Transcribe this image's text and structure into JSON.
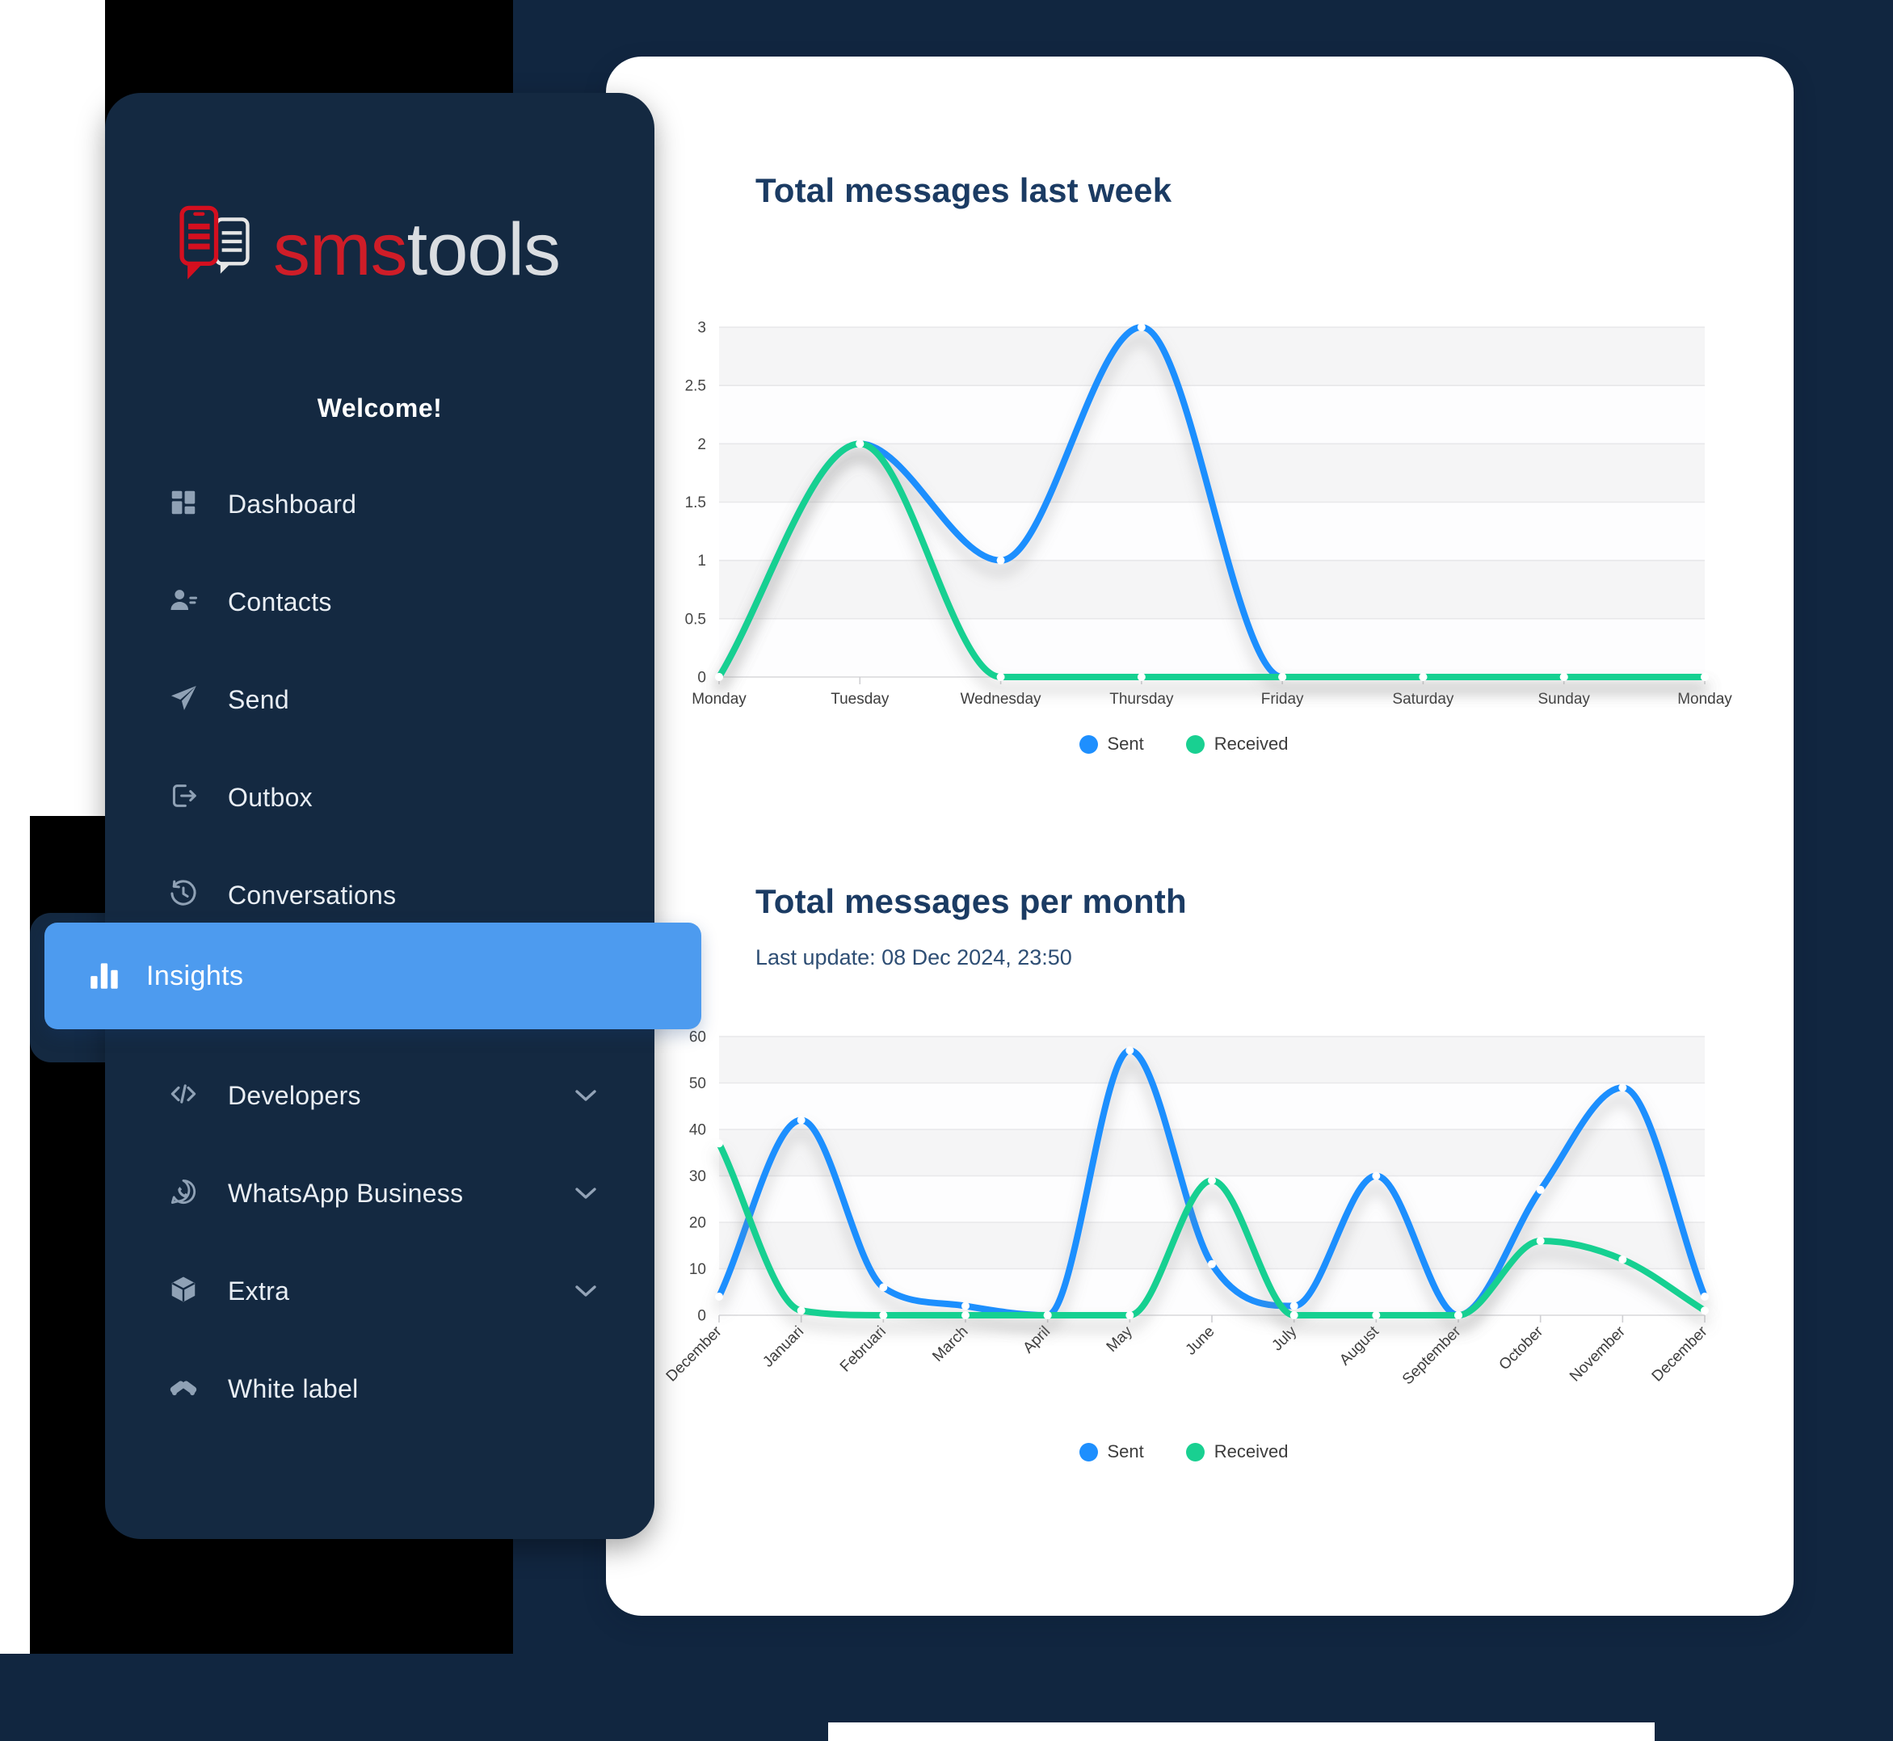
{
  "app": {
    "brand_red": "sms",
    "brand_light": "tools",
    "welcome": "Welcome!"
  },
  "sidebar": {
    "items": [
      {
        "label": "Dashboard",
        "icon": "dashboard-icon"
      },
      {
        "label": "Contacts",
        "icon": "contacts-icon"
      },
      {
        "label": "Send",
        "icon": "send-icon"
      },
      {
        "label": "Outbox",
        "icon": "outbox-icon"
      },
      {
        "label": "Conversations",
        "icon": "conversations-icon"
      },
      {
        "label": "Insights",
        "icon": "insights-icon",
        "active": true
      },
      {
        "label": "Developers",
        "icon": "developers-icon",
        "expandable": true
      },
      {
        "label": "WhatsApp Business",
        "icon": "whatsapp-icon",
        "expandable": true
      },
      {
        "label": "Extra",
        "icon": "extra-icon",
        "expandable": true
      },
      {
        "label": "White label",
        "icon": "white-label-icon"
      }
    ]
  },
  "colors": {
    "page_navy": "#112640",
    "sidebar_navy": "#142941",
    "accent_blue": "#4d9bef",
    "chart_blue": "#1e8ffe",
    "chart_green": "#19d091",
    "logo_red": "#cf1d28",
    "title_navy": "#1b3b63"
  },
  "chart_data": [
    {
      "type": "line",
      "title": "Total messages last week",
      "categories": [
        "Monday",
        "Tuesday",
        "Wednesday",
        "Thursday",
        "Friday",
        "Saturday",
        "Sunday",
        "Monday"
      ],
      "series": [
        {
          "name": "Sent",
          "color": "#1e8ffe",
          "values": [
            0,
            2,
            1,
            3,
            0,
            0,
            0,
            0
          ]
        },
        {
          "name": "Received",
          "color": "#19d091",
          "values": [
            0,
            2,
            0,
            0,
            0,
            0,
            0,
            0
          ]
        }
      ],
      "ylim": [
        0,
        3
      ],
      "yticks": [
        "3",
        "2.5",
        "2",
        "1.5",
        "1",
        "0.5",
        "0"
      ],
      "grid": true,
      "legend_position": "bottom"
    },
    {
      "type": "line",
      "title": "Total messages per month",
      "subtitle": "Last update: 08 Dec 2024, 23:50",
      "categories": [
        "December",
        "Januari",
        "Februari",
        "March",
        "April",
        "May",
        "June",
        "July",
        "August",
        "September",
        "October",
        "November",
        "December"
      ],
      "series": [
        {
          "name": "Sent",
          "color": "#1e8ffe",
          "values": [
            4,
            42,
            6,
            2,
            0,
            57,
            11,
            2,
            30,
            0,
            27,
            49,
            4
          ]
        },
        {
          "name": "Received",
          "color": "#19d091",
          "values": [
            37,
            1,
            0,
            0,
            0,
            0,
            29,
            0,
            0,
            0,
            16,
            12,
            1
          ]
        }
      ],
      "ylim": [
        0,
        60
      ],
      "yticks": [
        "60",
        "50",
        "40",
        "30",
        "20",
        "10",
        "0"
      ],
      "grid": true,
      "legend_position": "bottom"
    }
  ]
}
